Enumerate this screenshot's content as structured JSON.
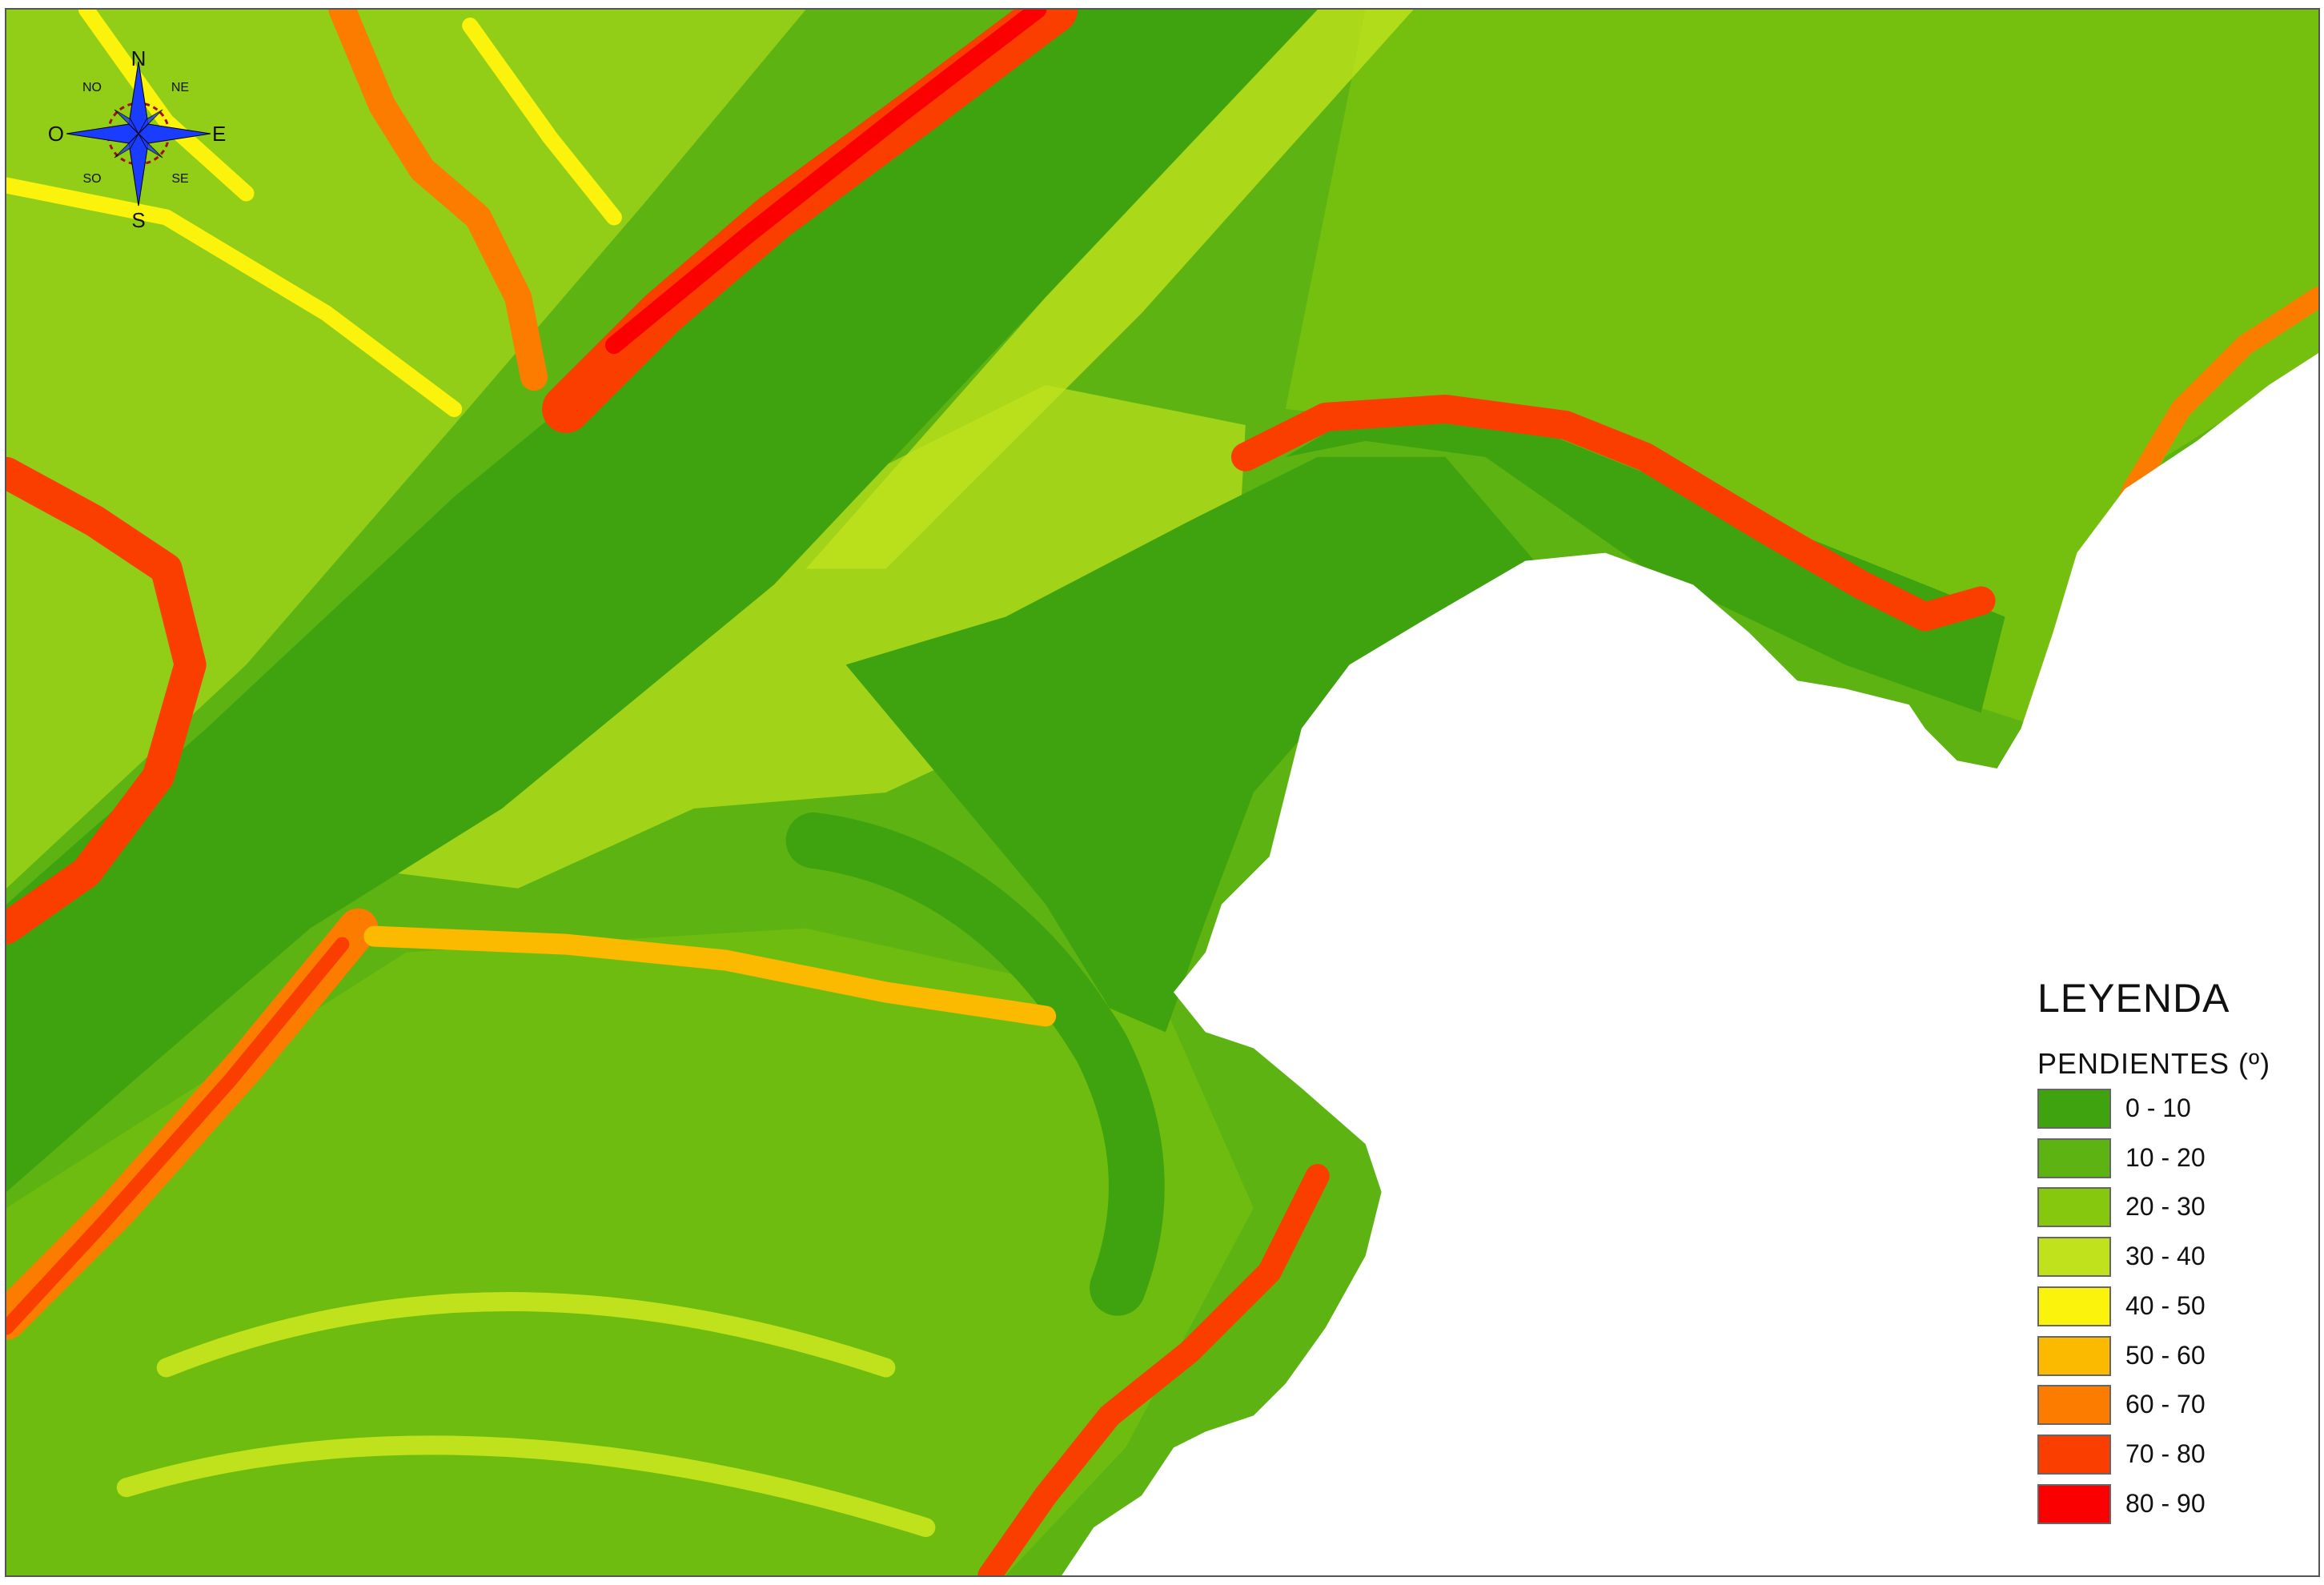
{
  "map": {
    "land_palette": {
      "class_1": "#3ea30f",
      "class_2": "#5cb312",
      "class_3": "#86c80e",
      "class_4": "#bfe21c",
      "class_5": "#fbf30c",
      "class_6": "#fbb900",
      "class_7": "#fc7c00",
      "class_8": "#fa3e00",
      "class_9": "#fa0000"
    },
    "water_color": "#ffffff"
  },
  "compass": {
    "north": "N",
    "south": "S",
    "east": "E",
    "west": "O",
    "northeast": "NE",
    "northwest": "NO",
    "southeast": "SE",
    "southwest": "SO",
    "icon": "compass-rose-icon",
    "color": "#1a3cff"
  },
  "legend": {
    "title": "LEYENDA",
    "subtitle": "PENDIENTES (º)",
    "items": [
      {
        "label": "0 - 10",
        "color": "#3ea30f"
      },
      {
        "label": "10 - 20",
        "color": "#5cb312"
      },
      {
        "label": "20 - 30",
        "color": "#86c80e"
      },
      {
        "label": "30 - 40",
        "color": "#bfe21c"
      },
      {
        "label": "40 - 50",
        "color": "#fbf30c"
      },
      {
        "label": "50 - 60",
        "color": "#fbb900"
      },
      {
        "label": "60 - 70",
        "color": "#fc7c00"
      },
      {
        "label": "70 - 80",
        "color": "#fa3e00"
      },
      {
        "label": "80 - 90",
        "color": "#fa0000"
      }
    ]
  }
}
